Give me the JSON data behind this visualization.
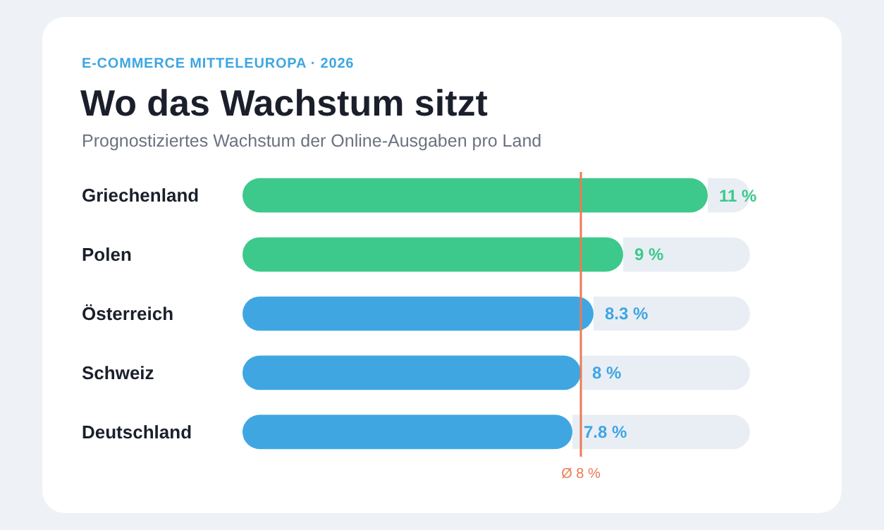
{
  "chart_data": {
    "type": "bar",
    "orientation": "horizontal",
    "title": "Wo das Wachstum sitzt",
    "subtitle": "Prognostiziertes Wachstum der Online-Ausgaben pro Land",
    "annotations": [
      "E-COMMERCE MITTELEUROPA · 2026"
    ],
    "categories": [
      "Griechenland",
      "Polen",
      "Österreich",
      "Schweiz",
      "Deutschland"
    ],
    "values": [
      11,
      9,
      8.3,
      8,
      7.8
    ],
    "colors": [
      "#3cc98b",
      "#3cc98b",
      "#3fa6e2",
      "#3fa6e2",
      "#3fa6e2"
    ],
    "value_labels": [
      "11 %",
      "9 %",
      "8.3 %",
      "8 %",
      "7.8 %"
    ],
    "xlim": [
      0,
      12
    ],
    "ref_lines": [
      {
        "axis": "x",
        "value": 8,
        "label": "Ø 8 %",
        "color": "#ec7a55"
      }
    ]
  }
}
